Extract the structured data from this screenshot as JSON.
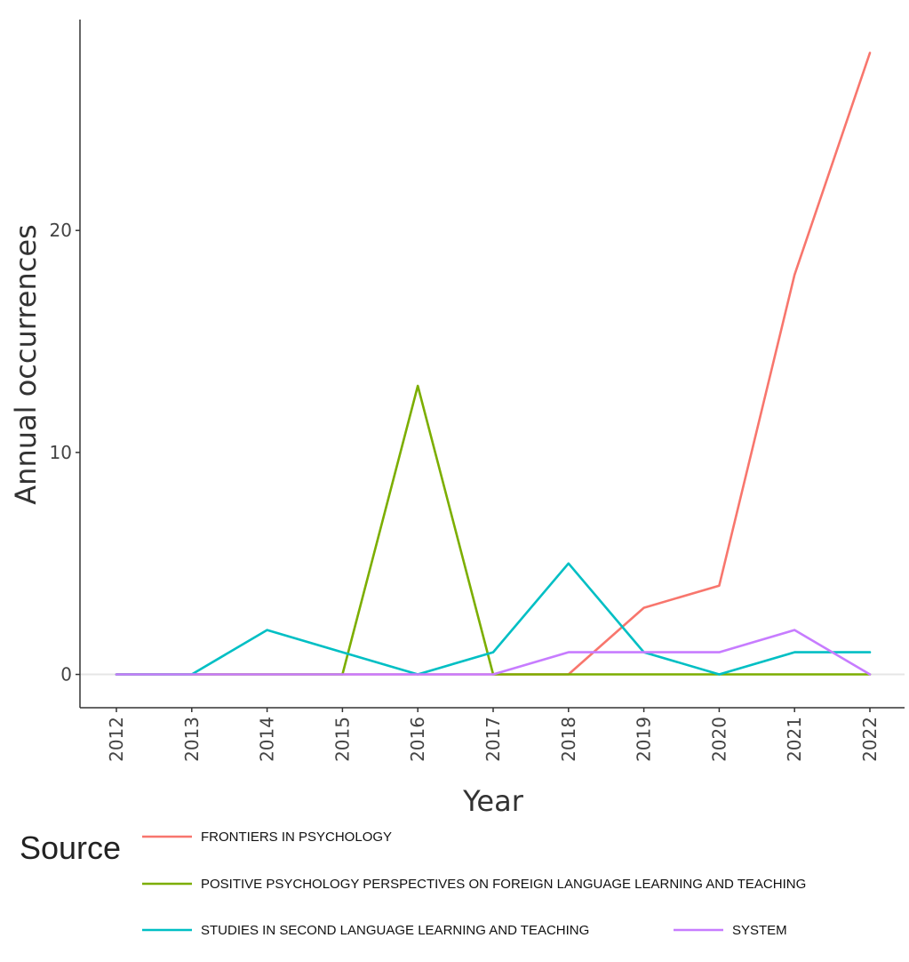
{
  "chart_data": {
    "type": "line",
    "xlabel": "Year",
    "ylabel": "Annual occurrences",
    "x": [
      "2012",
      "2013",
      "2014",
      "2015",
      "2016",
      "2017",
      "2018",
      "2019",
      "2020",
      "2021",
      "2022"
    ],
    "xlim": [
      2012,
      2022
    ],
    "ylim": [
      -1.5,
      29.5
    ],
    "yticks": [
      0,
      10,
      20
    ],
    "grid": false,
    "legend": {
      "title": "Source",
      "placement": "bottom"
    },
    "series": [
      {
        "name": "FRONTIERS IN PSYCHOLOGY",
        "color": "#F8766D",
        "values": [
          0,
          0,
          0,
          0,
          0,
          0,
          0,
          3,
          4,
          18,
          28
        ]
      },
      {
        "name": "POSITIVE PSYCHOLOGY PERSPECTIVES ON FOREIGN LANGUAGE LEARNING AND TEACHING",
        "color": "#7CAE00",
        "values": [
          0,
          0,
          0,
          0,
          13,
          0,
          0,
          0,
          0,
          0,
          0
        ]
      },
      {
        "name": "STUDIES IN SECOND LANGUAGE LEARNING AND TEACHING",
        "color": "#00BFC4",
        "values": [
          0,
          0,
          2,
          1,
          0,
          1,
          5,
          1,
          0,
          1,
          1
        ]
      },
      {
        "name": "SYSTEM",
        "color": "#C77CFF",
        "values": [
          0,
          0,
          0,
          0,
          0,
          0,
          1,
          1,
          1,
          2,
          0
        ]
      }
    ]
  }
}
